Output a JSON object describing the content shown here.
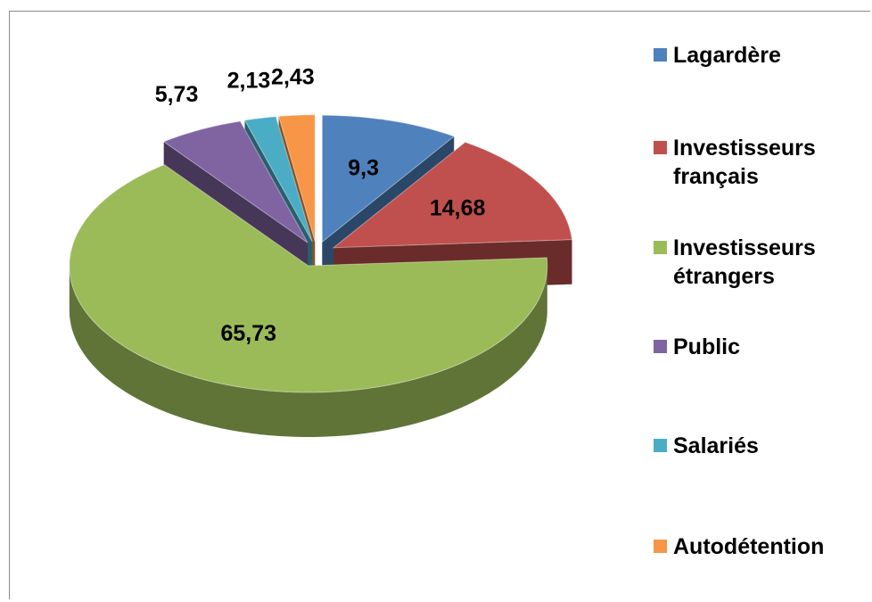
{
  "chart_data": {
    "type": "pie",
    "categories": [
      "Lagardère",
      "Investisseurs français",
      "Investisseurs étrangers",
      "Public",
      "Salariés",
      "Autodétention"
    ],
    "values": [
      9.3,
      14.68,
      65.73,
      5.73,
      2.13,
      2.43
    ],
    "value_labels": [
      "9,3",
      "14,68",
      "65,73",
      "5,73",
      "2,13",
      "2,43"
    ],
    "colors": [
      "#4f81bd",
      "#c0504d",
      "#9bbb59",
      "#8064a2",
      "#4bacc6",
      "#f79646"
    ],
    "legend": "right"
  }
}
